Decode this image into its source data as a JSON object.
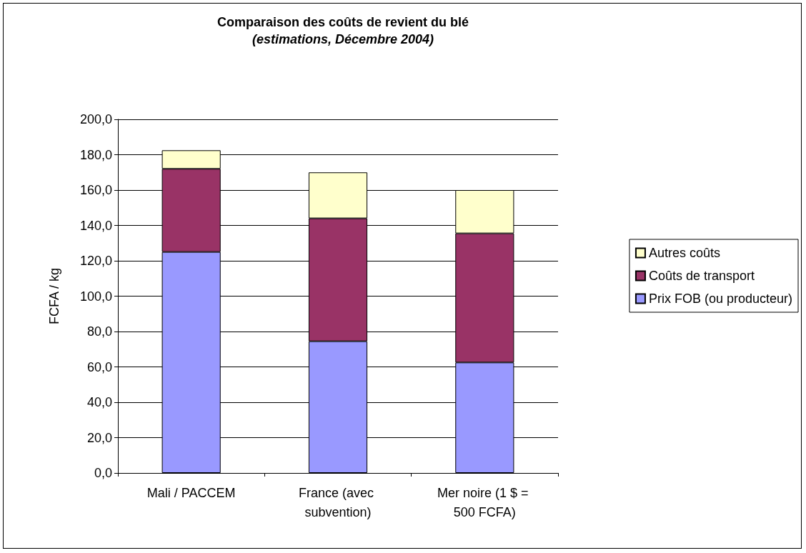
{
  "chart_data": {
    "type": "bar",
    "title": "Comparaison des coûts de revient du blé",
    "subtitle": "(estimations, Décembre 2004)",
    "ylabel": "FCFA / kg",
    "categories": [
      "Mali / PACCEM",
      "France (avec subvention)",
      "Mer noire (1 $ = 500 FCFA)"
    ],
    "series": [
      {
        "name": "Prix FOB (ou producteur)",
        "color": "#9999ff",
        "values": [
          125,
          74.5,
          62.5
        ]
      },
      {
        "name": "Coûts de transport",
        "color": "#993366",
        "values": [
          47,
          69.5,
          73
        ]
      },
      {
        "name": "Autres coûts",
        "color": "#ffffcc",
        "values": [
          10.5,
          26,
          24.5
        ]
      }
    ],
    "stacked": true,
    "ylim": [
      0,
      200
    ],
    "yticks": [
      {
        "value": 0,
        "label": "0,0"
      },
      {
        "value": 20,
        "label": "20,0"
      },
      {
        "value": 40,
        "label": "40,0"
      },
      {
        "value": 60,
        "label": "60,0"
      },
      {
        "value": 80,
        "label": "80,0"
      },
      {
        "value": 100,
        "label": "100,0"
      },
      {
        "value": 120,
        "label": "120,0"
      },
      {
        "value": 140,
        "label": "140,0"
      },
      {
        "value": 160,
        "label": "160,0"
      },
      {
        "value": 180,
        "label": "180,0"
      },
      {
        "value": 200,
        "label": "200,0"
      }
    ],
    "grid": "y",
    "legend": "right"
  }
}
